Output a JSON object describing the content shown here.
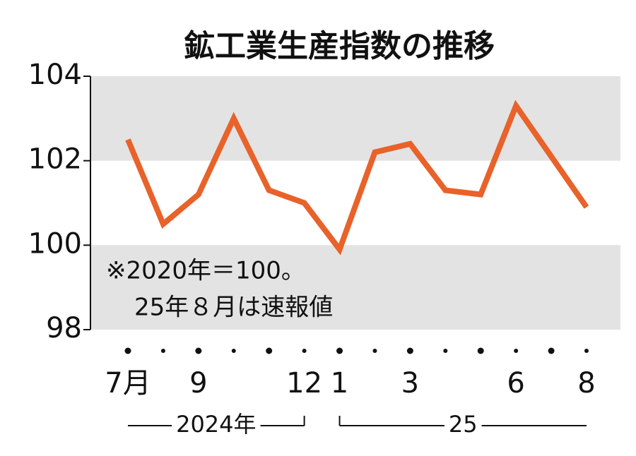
{
  "chart_data": {
    "type": "line",
    "title": "鉱工業生産指数の推移",
    "categories": [
      "7月",
      null,
      "9",
      null,
      null,
      "12",
      "1",
      null,
      "3",
      null,
      null,
      "6",
      null,
      "8"
    ],
    "year_labels": [
      "2024年",
      "25"
    ],
    "series": [
      {
        "name": "鉱工業生産指数",
        "color": "#e8622a",
        "values": [
          102.5,
          100.5,
          101.2,
          103.0,
          101.3,
          101.0,
          99.9,
          102.2,
          102.4,
          101.3,
          101.2,
          103.3,
          102.1,
          100.9
        ]
      }
    ],
    "ylim": [
      98,
      104
    ],
    "yticks": [
      98,
      100,
      102,
      104
    ],
    "grid": true,
    "band_color": "#e3e3e3",
    "annotations": [
      "※2020年＝100。",
      "25年８月は速報値"
    ]
  }
}
